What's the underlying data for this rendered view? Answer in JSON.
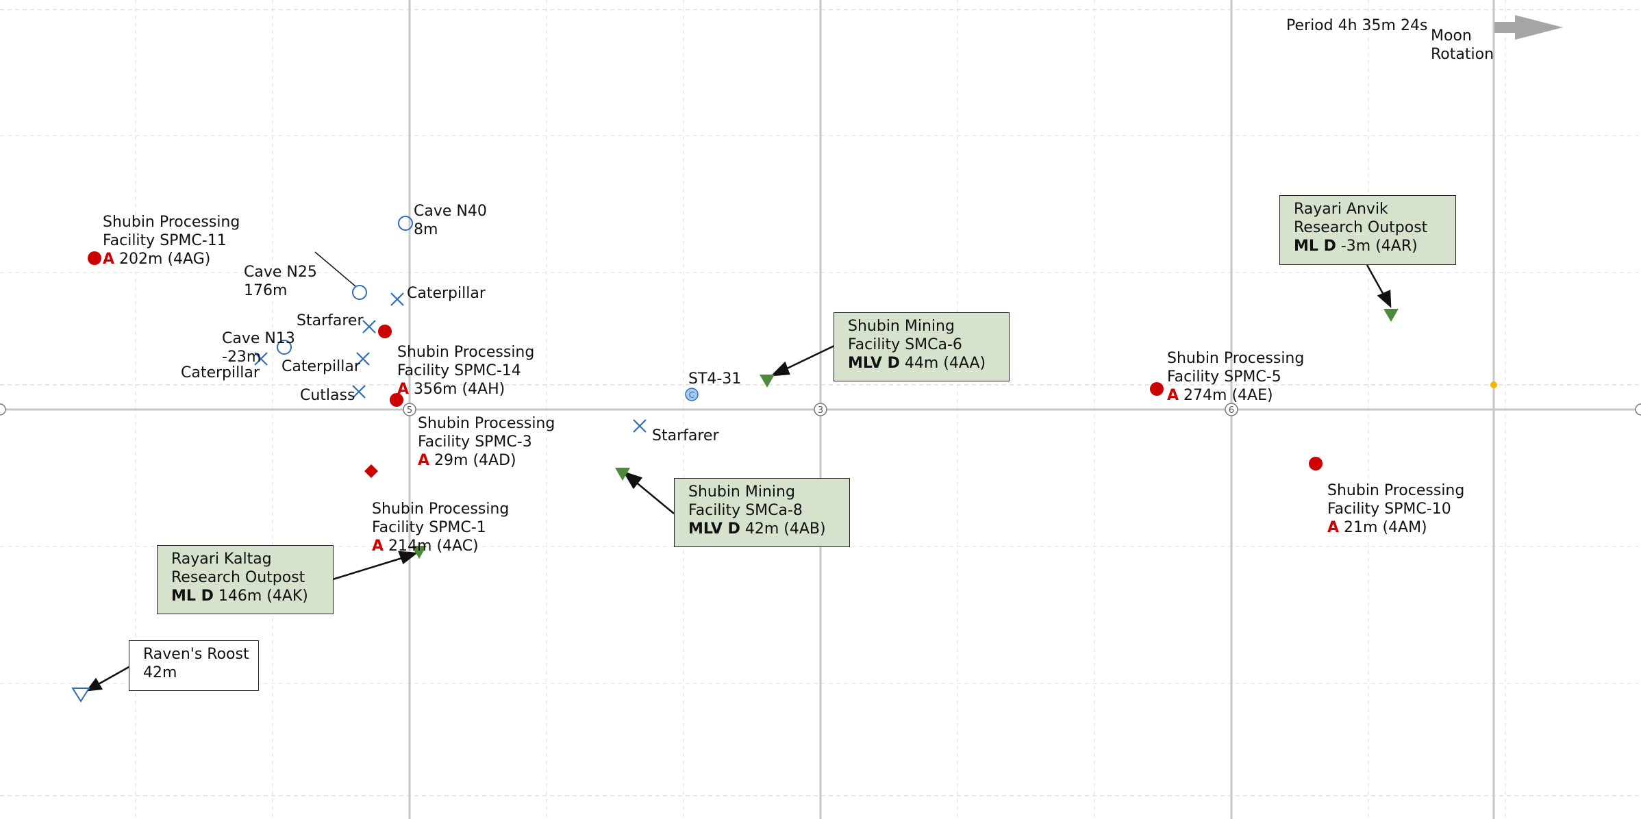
{
  "header": {
    "period": "Period 4h 35m 24s",
    "rotation_line1": "Moon",
    "rotation_line2": "Rotation"
  },
  "axis_markers": [
    "5",
    "3",
    "6"
  ],
  "facilities": {
    "spmc11": {
      "line1": "Shubin Processing",
      "line2": "Facility SPMC-11",
      "badge": "A",
      "info": "202m (4AG)"
    },
    "spmc14": {
      "line1": "Shubin Processing",
      "line2": "Facility SPMC-14",
      "badge": "A",
      "info": "356m (4AH)"
    },
    "spmc3": {
      "line1": "Shubin Processing",
      "line2": "Facility SPMC-3",
      "badge": "A",
      "info": "29m (4AD)"
    },
    "spmc1": {
      "line1": "Shubin Processing",
      "line2": "Facility SPMC-1",
      "badge": "A",
      "info": "214m (4AC)"
    },
    "spmc5": {
      "line1": "Shubin Processing",
      "line2": "Facility SPMC-5",
      "badge": "A",
      "info": "274m (4AE)"
    },
    "spmc10": {
      "line1": "Shubin Processing",
      "line2": "Facility SPMC-10",
      "badge": "A",
      "info": "21m (4AM)"
    }
  },
  "caves": {
    "n40": {
      "name": "Cave N40",
      "depth": "8m"
    },
    "n25": {
      "name": "Cave N25",
      "depth": "176m"
    },
    "n13": {
      "name": "Cave N13",
      "depth": "-23m"
    }
  },
  "wrecks": {
    "caterpillar_a": "Caterpillar",
    "starfarer_a": "Starfarer",
    "caterpillar_b": "Caterpillar",
    "caterpillar_c": "Caterpillar",
    "cutlass": "Cutlass",
    "starfarer_b": "Starfarer"
  },
  "comm_array": {
    "name": "ST4-31",
    "icon": "C"
  },
  "callouts": {
    "smca6": {
      "line1": "Shubin Mining",
      "line2": "Facility SMCa-6",
      "bold": "MLV D",
      "info": " 44m (4AA)"
    },
    "smca8": {
      "line1": "Shubin Mining",
      "line2": "Facility SMCa-8",
      "bold": "MLV D",
      "info": " 42m (4AB)"
    },
    "kaltag": {
      "line1": "Rayari Kaltag",
      "line2": "Research Outpost",
      "bold": "ML D",
      "info": " 146m (4AK)"
    },
    "anvik": {
      "line1": "Rayari Anvik",
      "line2": "Research Outpost",
      "bold": "ML D",
      "info": " -3m (4AR)"
    },
    "ravens": {
      "line1": "Raven's Roost",
      "line2": "42m"
    }
  },
  "colors": {
    "outpost_red": "#cc0000",
    "cave_blue": "#2e6db8",
    "outpost_green": "#4e8a3a",
    "callout_fill": "#d6e2cc",
    "grid": "#dcdcdc",
    "axis": "#c4c4c4",
    "sun_marker": "#f5b400",
    "arrow_grey": "#a6a6a6"
  }
}
